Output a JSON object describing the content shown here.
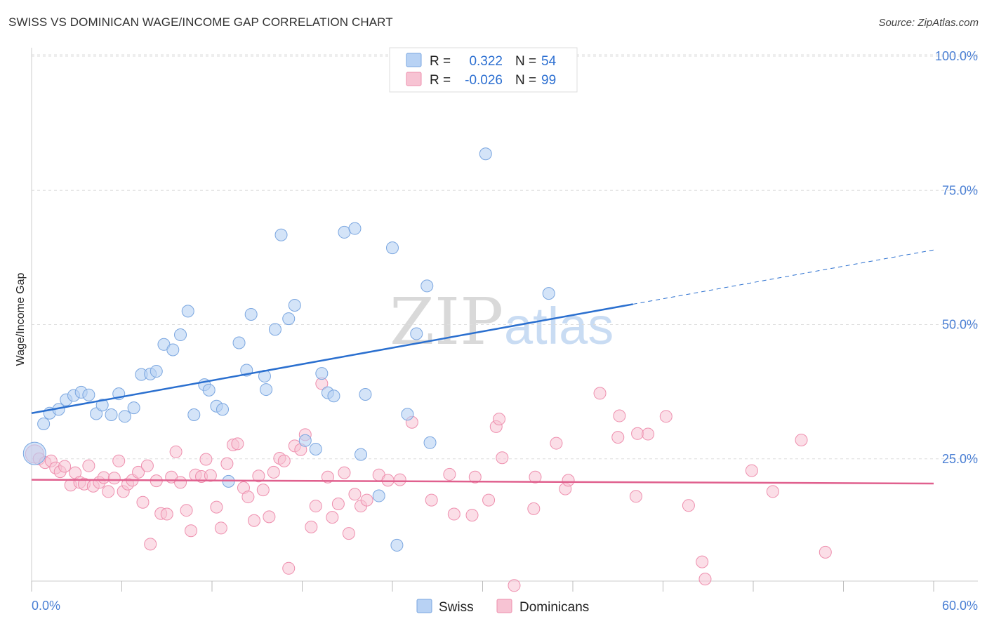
{
  "header": {
    "title": "SWISS VS DOMINICAN WAGE/INCOME GAP CORRELATION CHART",
    "source": "Source: ZipAtlas.com"
  },
  "watermark": {
    "zip": "ZIP",
    "atlas": "atlas"
  },
  "legend": {
    "swiss": {
      "r_label": "R =",
      "r_value": "0.322",
      "n_label": "N =",
      "n_value": "54"
    },
    "dominicans": {
      "r_label": "R =",
      "r_value": "-0.026",
      "n_label": "N =",
      "n_value": "99"
    }
  },
  "bottom_legend": {
    "swiss": "Swiss",
    "dominicans": "Dominicans"
  },
  "colors": {
    "swiss_fill": "#b8d2f4",
    "swiss_stroke": "#7aa6e0",
    "swiss_line": "#2a6fcf",
    "dom_fill": "#f7c3d3",
    "dom_stroke": "#ee8fae",
    "dom_line": "#e0608e",
    "tick_text": "#4a7fd4",
    "grid": "#dddddd"
  },
  "chart_data": {
    "type": "scatter",
    "title": "SWISS VS DOMINICAN WAGE/INCOME GAP CORRELATION CHART",
    "xlabel": "",
    "ylabel": "Wage/Income Gap",
    "xlim": [
      0,
      60
    ],
    "ylim": [
      0,
      100
    ],
    "x_tick_labels": [
      "0.0%",
      "60.0%"
    ],
    "y_ticks": [
      25,
      50,
      75,
      100
    ],
    "y_tick_labels": [
      "25.0%",
      "50.0%",
      "75.0%",
      "100.0%"
    ],
    "grid": true,
    "series": [
      {
        "name": "Swiss",
        "R": 0.322,
        "N": 54,
        "trend": {
          "x0": 0,
          "y0": 33.5,
          "x1": 40,
          "y1": 53.8,
          "dashed_to_x": 60,
          "dashed_to_y": 63.9
        },
        "points": [
          [
            0.2,
            26.0
          ],
          [
            0.8,
            31.5
          ],
          [
            1.2,
            33.5
          ],
          [
            1.8,
            34.2
          ],
          [
            2.3,
            36.0
          ],
          [
            2.8,
            36.8
          ],
          [
            3.3,
            37.4
          ],
          [
            3.8,
            36.9
          ],
          [
            4.3,
            33.4
          ],
          [
            4.7,
            35.0
          ],
          [
            5.3,
            33.2
          ],
          [
            5.8,
            37.1
          ],
          [
            6.2,
            32.9
          ],
          [
            6.8,
            34.5
          ],
          [
            7.3,
            40.7
          ],
          [
            7.9,
            40.8
          ],
          [
            8.3,
            41.3
          ],
          [
            8.8,
            46.3
          ],
          [
            9.4,
            45.3
          ],
          [
            9.9,
            48.1
          ],
          [
            10.4,
            52.5
          ],
          [
            10.8,
            33.2
          ],
          [
            11.5,
            38.8
          ],
          [
            11.8,
            37.8
          ],
          [
            12.3,
            34.8
          ],
          [
            12.7,
            34.2
          ],
          [
            13.1,
            20.8
          ],
          [
            13.8,
            46.6
          ],
          [
            14.3,
            41.5
          ],
          [
            14.6,
            51.9
          ],
          [
            15.5,
            40.4
          ],
          [
            15.6,
            37.9
          ],
          [
            16.2,
            49.1
          ],
          [
            16.6,
            66.7
          ],
          [
            17.1,
            51.1
          ],
          [
            17.5,
            53.6
          ],
          [
            18.2,
            28.4
          ],
          [
            18.9,
            26.8
          ],
          [
            19.3,
            40.9
          ],
          [
            19.7,
            37.3
          ],
          [
            20.1,
            36.7
          ],
          [
            20.8,
            67.2
          ],
          [
            21.5,
            67.9
          ],
          [
            21.9,
            25.8
          ],
          [
            22.2,
            37.0
          ],
          [
            23.1,
            18.1
          ],
          [
            24.0,
            64.3
          ],
          [
            24.3,
            8.9
          ],
          [
            25.0,
            33.3
          ],
          [
            25.6,
            48.3
          ],
          [
            26.3,
            57.2
          ],
          [
            26.5,
            28.0
          ],
          [
            30.2,
            81.8
          ],
          [
            34.4,
            55.8
          ]
        ]
      },
      {
        "name": "Dominicans",
        "R": -0.026,
        "N": 99,
        "trend": {
          "x0": 0,
          "y0": 21.1,
          "x1": 60,
          "y1": 20.4
        },
        "points": [
          [
            0.2,
            25.9
          ],
          [
            0.5,
            25.0
          ],
          [
            0.9,
            24.3
          ],
          [
            1.3,
            24.6
          ],
          [
            1.6,
            23.3
          ],
          [
            1.9,
            22.6
          ],
          [
            2.2,
            23.6
          ],
          [
            2.6,
            20.1
          ],
          [
            2.9,
            22.4
          ],
          [
            3.2,
            20.6
          ],
          [
            3.5,
            20.3
          ],
          [
            3.8,
            23.7
          ],
          [
            4.1,
            19.9
          ],
          [
            4.5,
            20.6
          ],
          [
            4.8,
            21.5
          ],
          [
            5.1,
            18.9
          ],
          [
            5.5,
            21.4
          ],
          [
            5.8,
            24.6
          ],
          [
            6.1,
            18.9
          ],
          [
            6.4,
            20.3
          ],
          [
            6.7,
            21.0
          ],
          [
            7.1,
            22.5
          ],
          [
            7.4,
            16.9
          ],
          [
            7.7,
            23.7
          ],
          [
            7.9,
            9.1
          ],
          [
            8.3,
            20.9
          ],
          [
            8.6,
            14.8
          ],
          [
            9.0,
            14.7
          ],
          [
            9.3,
            21.6
          ],
          [
            9.6,
            26.3
          ],
          [
            9.9,
            20.6
          ],
          [
            10.3,
            15.4
          ],
          [
            10.6,
            11.6
          ],
          [
            10.9,
            22.0
          ],
          [
            11.3,
            21.7
          ],
          [
            11.6,
            24.9
          ],
          [
            11.9,
            21.9
          ],
          [
            12.3,
            16.0
          ],
          [
            12.6,
            12.1
          ],
          [
            13.0,
            24.1
          ],
          [
            13.4,
            27.6
          ],
          [
            13.7,
            27.8
          ],
          [
            14.1,
            19.6
          ],
          [
            14.4,
            17.9
          ],
          [
            14.8,
            13.5
          ],
          [
            15.1,
            21.8
          ],
          [
            15.4,
            19.2
          ],
          [
            15.8,
            14.2
          ],
          [
            16.1,
            22.5
          ],
          [
            16.5,
            25.1
          ],
          [
            16.8,
            24.6
          ],
          [
            17.1,
            4.6
          ],
          [
            17.5,
            27.4
          ],
          [
            17.9,
            26.7
          ],
          [
            18.2,
            29.5
          ],
          [
            18.6,
            12.3
          ],
          [
            18.9,
            16.2
          ],
          [
            19.3,
            39.0
          ],
          [
            19.7,
            21.6
          ],
          [
            20.0,
            14.1
          ],
          [
            20.4,
            16.6
          ],
          [
            20.8,
            22.4
          ],
          [
            21.1,
            11.1
          ],
          [
            21.5,
            18.4
          ],
          [
            21.9,
            16.2
          ],
          [
            22.3,
            17.3
          ],
          [
            23.1,
            22.0
          ],
          [
            23.7,
            21.0
          ],
          [
            24.5,
            21.1
          ],
          [
            25.3,
            31.8
          ],
          [
            26.6,
            17.3
          ],
          [
            27.8,
            22.1
          ],
          [
            28.1,
            14.7
          ],
          [
            29.3,
            14.5
          ],
          [
            29.5,
            21.6
          ],
          [
            30.4,
            17.3
          ],
          [
            30.9,
            31.0
          ],
          [
            31.1,
            32.4
          ],
          [
            31.3,
            25.2
          ],
          [
            32.1,
            1.4
          ],
          [
            33.4,
            15.7
          ],
          [
            33.5,
            21.6
          ],
          [
            34.9,
            27.9
          ],
          [
            35.5,
            19.4
          ],
          [
            35.7,
            21.0
          ],
          [
            37.8,
            37.2
          ],
          [
            39.0,
            29.0
          ],
          [
            39.1,
            33.0
          ],
          [
            40.2,
            18.0
          ],
          [
            40.3,
            29.7
          ],
          [
            41.0,
            29.6
          ],
          [
            42.2,
            32.9
          ],
          [
            43.7,
            16.3
          ],
          [
            44.6,
            5.8
          ],
          [
            44.8,
            2.6
          ],
          [
            47.9,
            22.8
          ],
          [
            49.3,
            18.9
          ],
          [
            51.2,
            28.5
          ],
          [
            52.8,
            7.6
          ]
        ]
      }
    ]
  }
}
